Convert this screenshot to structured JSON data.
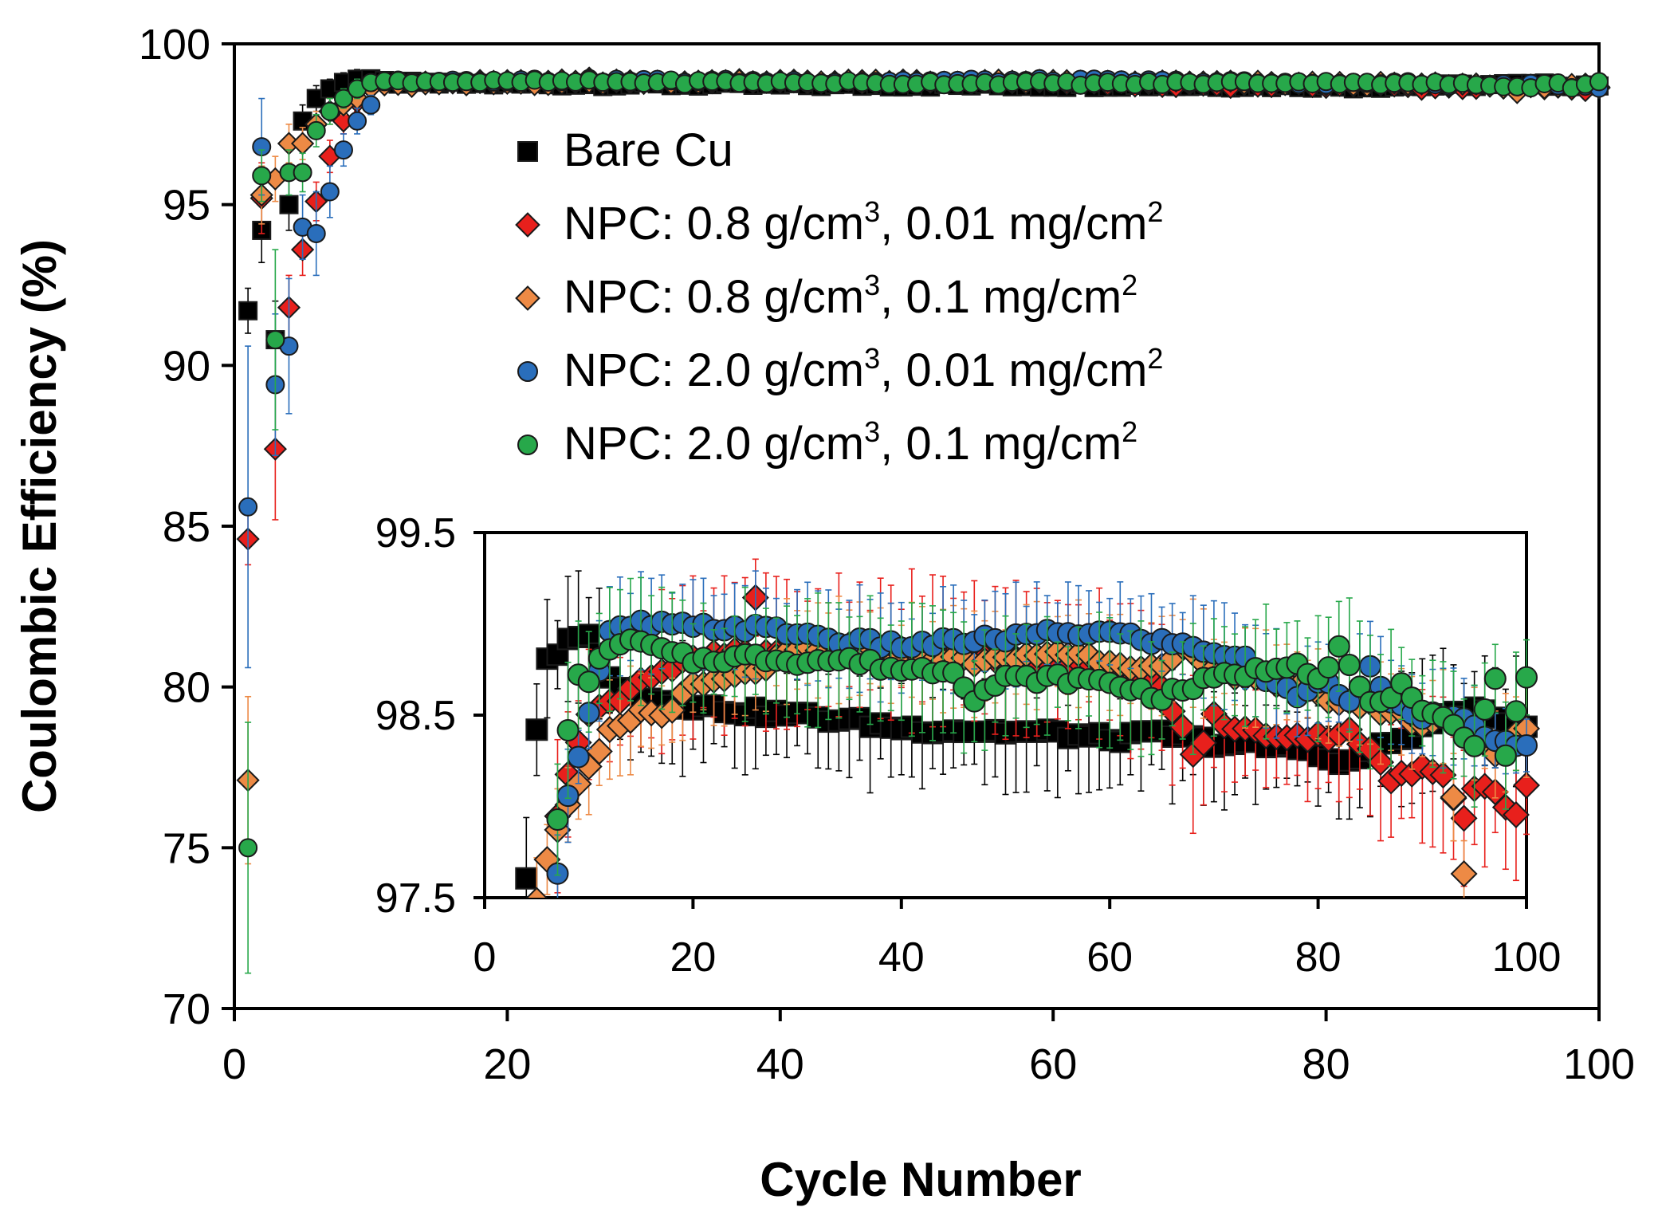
{
  "chart_data": {
    "type": "scatter",
    "xlabel": "Cycle Number",
    "ylabel": "Coulombic Efficiency (%)",
    "xlim": [
      0,
      100
    ],
    "ylim": [
      70,
      100
    ],
    "xticks": [
      "0",
      "20",
      "40",
      "60",
      "80",
      "100"
    ],
    "yticks": [
      "70",
      "75",
      "80",
      "85",
      "90",
      "95",
      "100"
    ],
    "legend_position": "upper-center",
    "series": [
      {
        "name": "Bare Cu",
        "color": "#000000",
        "marker": "square",
        "legend": {
          "prefix": "Bare Cu",
          "sup1": "",
          "mid": "",
          "sup2": ""
        },
        "early": [
          [
            1,
            91.7,
            0.7
          ],
          [
            2,
            94.2,
            1.0
          ],
          [
            3,
            90.8,
            1.2
          ],
          [
            4,
            95.0,
            0.8
          ],
          [
            5,
            97.6,
            0.5
          ],
          [
            6,
            98.3,
            0.4
          ],
          [
            7,
            98.6,
            0.3
          ],
          [
            8,
            98.8,
            0.3
          ],
          [
            9,
            98.9,
            0.3
          ]
        ],
        "inset_start": 4,
        "anchors": [
          [
            4,
            97.6
          ],
          [
            5,
            98.4
          ],
          [
            6,
            98.8
          ],
          [
            7,
            98.85
          ],
          [
            8,
            98.9
          ],
          [
            9,
            98.95
          ],
          [
            10,
            98.95
          ],
          [
            12,
            98.7
          ],
          [
            15,
            98.6
          ],
          [
            20,
            98.55
          ],
          [
            25,
            98.52
          ],
          [
            30,
            98.5
          ],
          [
            35,
            98.47
          ],
          [
            40,
            98.43
          ],
          [
            45,
            98.42
          ],
          [
            50,
            98.41
          ],
          [
            55,
            98.4
          ],
          [
            60,
            98.37
          ],
          [
            65,
            98.4
          ],
          [
            70,
            98.35
          ],
          [
            75,
            98.33
          ],
          [
            78,
            98.32
          ],
          [
            80,
            98.3
          ],
          [
            82,
            98.22
          ],
          [
            85,
            98.3
          ],
          [
            90,
            98.42
          ],
          [
            92,
            98.5
          ],
          [
            95,
            98.52
          ],
          [
            97,
            98.48
          ],
          [
            100,
            98.46
          ]
        ],
        "err": 0.25
      },
      {
        "name": "NPC: 0.8 g/cm3, 0.01 mg/cm2",
        "color": "#e8201c",
        "marker": "diamond",
        "legend": {
          "prefix": "NPC: 0.8 g/cm",
          "sup1": "3",
          "mid": ", 0.01 mg/cm",
          "sup2": "2"
        },
        "early": [
          [
            1,
            84.6,
            0.8
          ],
          [
            2,
            95.2,
            1.1
          ],
          [
            3,
            87.4,
            2.2
          ],
          [
            4,
            91.8,
            1.0
          ],
          [
            5,
            93.6,
            0.8
          ],
          [
            6,
            95.1,
            0.6
          ],
          [
            7,
            96.5,
            0.5
          ],
          [
            8,
            97.6,
            0.4
          ],
          [
            9,
            98.2,
            0.3
          ]
        ],
        "inset_start": 7,
        "anchors": [
          [
            7,
            97.95
          ],
          [
            8,
            98.2
          ],
          [
            10,
            98.5
          ],
          [
            13,
            98.6
          ],
          [
            15,
            98.7
          ],
          [
            20,
            98.8
          ],
          [
            25,
            98.85
          ],
          [
            26,
            99.12
          ],
          [
            27,
            98.85
          ],
          [
            30,
            98.82
          ],
          [
            35,
            98.88
          ],
          [
            40,
            98.85
          ],
          [
            45,
            98.87
          ],
          [
            50,
            98.8
          ],
          [
            55,
            98.8
          ],
          [
            60,
            98.75
          ],
          [
            65,
            98.65
          ],
          [
            68,
            98.3
          ],
          [
            69,
            98.33
          ],
          [
            70,
            98.5
          ],
          [
            72,
            98.42
          ],
          [
            75,
            98.4
          ],
          [
            80,
            98.38
          ],
          [
            83,
            98.42
          ],
          [
            85,
            98.3
          ],
          [
            87,
            98.15
          ],
          [
            90,
            98.2
          ],
          [
            92,
            98.18
          ],
          [
            94,
            97.95
          ],
          [
            95,
            98.12
          ],
          [
            97,
            98.08
          ],
          [
            99,
            97.95
          ],
          [
            100,
            98.1
          ]
        ],
        "err": 0.3
      },
      {
        "name": "NPC: 0.8 g/cm3, 0.1 mg/cm2",
        "color": "#ed8a45",
        "marker": "diamond",
        "legend": {
          "prefix": "NPC: 0.8 g/cm",
          "sup1": "3",
          "mid": ", 0.1 mg/cm",
          "sup2": "2"
        },
        "early": [
          [
            1,
            77.1,
            2.6
          ],
          [
            2,
            95.3,
            0.9
          ],
          [
            3,
            95.8,
            0.7
          ],
          [
            4,
            96.9,
            0.6
          ],
          [
            5,
            96.9,
            0.5
          ],
          [
            6,
            97.5,
            0.4
          ],
          [
            7,
            97.9,
            0.4
          ],
          [
            8,
            98.1,
            0.3
          ],
          [
            9,
            98.3,
            0.3
          ]
        ],
        "inset_start": 5,
        "anchors": [
          [
            5,
            97.5
          ],
          [
            6,
            97.7
          ],
          [
            7,
            97.85
          ],
          [
            8,
            98.0
          ],
          [
            10,
            98.2
          ],
          [
            12,
            98.4
          ],
          [
            15,
            98.52
          ],
          [
            17,
            98.5
          ],
          [
            20,
            98.65
          ],
          [
            25,
            98.72
          ],
          [
            30,
            98.85
          ],
          [
            35,
            98.85
          ],
          [
            40,
            98.85
          ],
          [
            45,
            98.8
          ],
          [
            50,
            98.8
          ],
          [
            55,
            98.85
          ],
          [
            60,
            98.8
          ],
          [
            65,
            98.75
          ],
          [
            67,
            98.85
          ],
          [
            70,
            98.75
          ],
          [
            75,
            98.7
          ],
          [
            80,
            98.6
          ],
          [
            85,
            98.55
          ],
          [
            88,
            98.5
          ],
          [
            90,
            98.45
          ],
          [
            92,
            98.48
          ],
          [
            94,
            97.65
          ],
          [
            95,
            98.4
          ],
          [
            97,
            98.3
          ],
          [
            100,
            98.42
          ]
        ],
        "err": 0.2
      },
      {
        "name": "NPC: 2.0 g/cm3, 0.01 mg/cm2",
        "color": "#2a6ebb",
        "marker": "circle",
        "legend": {
          "prefix": "NPC: 2.0 g/cm",
          "sup1": "3",
          "mid": ", 0.01 mg/cm",
          "sup2": "2"
        },
        "early": [
          [
            1,
            85.6,
            5.0
          ],
          [
            2,
            96.8,
            1.5
          ],
          [
            3,
            89.4,
            2.2
          ],
          [
            4,
            90.6,
            2.1
          ],
          [
            5,
            94.3,
            1.0
          ],
          [
            6,
            94.1,
            1.3
          ],
          [
            7,
            95.4,
            0.8
          ],
          [
            8,
            96.7,
            0.5
          ],
          [
            9,
            97.6,
            0.4
          ],
          [
            10,
            98.1,
            0.3
          ]
        ],
        "inset_start": 7,
        "anchors": [
          [
            7,
            97.65
          ],
          [
            8,
            98.05
          ],
          [
            10,
            98.5
          ],
          [
            12,
            98.95
          ],
          [
            15,
            99.0
          ],
          [
            20,
            98.98
          ],
          [
            25,
            98.98
          ],
          [
            30,
            98.95
          ],
          [
            35,
            98.9
          ],
          [
            40,
            98.88
          ],
          [
            45,
            98.9
          ],
          [
            50,
            98.92
          ],
          [
            55,
            98.95
          ],
          [
            60,
            98.95
          ],
          [
            65,
            98.9
          ],
          [
            70,
            98.85
          ],
          [
            73,
            98.8
          ],
          [
            75,
            98.7
          ],
          [
            78,
            98.6
          ],
          [
            80,
            98.7
          ],
          [
            83,
            98.6
          ],
          [
            85,
            98.75
          ],
          [
            87,
            98.55
          ],
          [
            90,
            98.5
          ],
          [
            95,
            98.45
          ],
          [
            97,
            98.35
          ],
          [
            100,
            98.32
          ]
        ],
        "err": 0.2
      },
      {
        "name": "NPC: 2.0 g/cm3, 0.1 mg/cm2",
        "color": "#27a84a",
        "marker": "circle",
        "legend": {
          "prefix": "NPC: 2.0 g/cm",
          "sup1": "3",
          "mid": ", 0.1 mg/cm",
          "sup2": "2"
        },
        "early": [
          [
            1,
            75.0,
            3.9
          ],
          [
            2,
            95.9,
            0.8
          ],
          [
            3,
            90.8,
            2.8
          ],
          [
            4,
            96.0,
            0.7
          ],
          [
            5,
            96.0,
            0.6
          ],
          [
            6,
            97.3,
            0.5
          ],
          [
            7,
            97.9,
            0.4
          ],
          [
            8,
            98.3,
            0.3
          ],
          [
            9,
            98.6,
            0.3
          ]
        ],
        "inset_start": 7,
        "anchors": [
          [
            7,
            97.95
          ],
          [
            8,
            98.4
          ],
          [
            9,
            98.7
          ],
          [
            10,
            98.7
          ],
          [
            12,
            98.88
          ],
          [
            15,
            98.9
          ],
          [
            17,
            98.85
          ],
          [
            20,
            98.8
          ],
          [
            25,
            98.82
          ],
          [
            30,
            98.8
          ],
          [
            35,
            98.8
          ],
          [
            40,
            98.75
          ],
          [
            45,
            98.75
          ],
          [
            47,
            98.6
          ],
          [
            50,
            98.7
          ],
          [
            55,
            98.7
          ],
          [
            60,
            98.68
          ],
          [
            65,
            98.6
          ],
          [
            70,
            98.7
          ],
          [
            75,
            98.75
          ],
          [
            78,
            98.8
          ],
          [
            80,
            98.7
          ],
          [
            82,
            98.87
          ],
          [
            85,
            98.55
          ],
          [
            88,
            98.65
          ],
          [
            90,
            98.5
          ],
          [
            93,
            98.45
          ],
          [
            95,
            98.35
          ],
          [
            97,
            98.7
          ],
          [
            98,
            98.3
          ],
          [
            100,
            98.7
          ]
        ],
        "err": 0.25
      }
    ],
    "inset": {
      "xlim": [
        0,
        100
      ],
      "ylim": [
        97.5,
        99.5
      ],
      "xticks": [
        "0",
        "20",
        "40",
        "60",
        "80",
        "100"
      ],
      "yticks": [
        "97.5",
        "98.5",
        "99.5"
      ]
    }
  }
}
